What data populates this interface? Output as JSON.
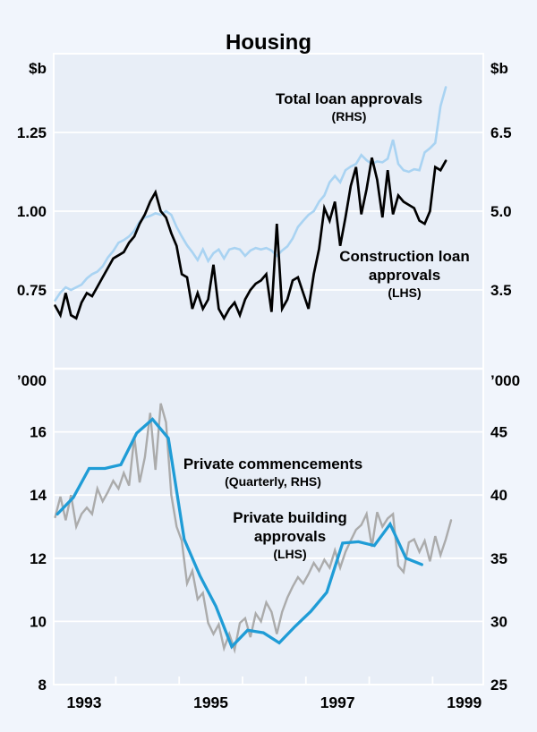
{
  "title": "Housing",
  "colors": {
    "background": "#f1f5fc",
    "plot_background": "#e8eef7",
    "gridline": "#ffffff",
    "text": "#000000",
    "total_loans": "#a9d3f2",
    "construction_loans": "#000000",
    "commencements": "#1f9cd6",
    "building_approvals": "#ababab"
  },
  "x_axis": {
    "lim": [
      1992.52,
      1999.3
    ],
    "year_labels": [
      "1993",
      "1995",
      "1997",
      "1999"
    ],
    "minor_tick_years": [
      1993.5,
      1994.5,
      1995.5,
      1996.5,
      1997.5,
      1998.5
    ]
  },
  "chart_data": [
    {
      "type": "line",
      "panel": "top",
      "left_axis": {
        "unit": "$b",
        "lim": [
          0.5,
          1.5
        ],
        "ticks": [
          0.75,
          1.0,
          1.25
        ],
        "tick_labels": [
          "0.75",
          "1.00",
          "1.25"
        ]
      },
      "right_axis": {
        "unit": "$b",
        "lim": [
          2.0,
          8.0
        ],
        "ticks": [
          3.5,
          5.0,
          6.5
        ],
        "tick_labels": [
          "3.5",
          "5.0",
          "6.5"
        ]
      },
      "series": [
        {
          "name": "Total loan approvals",
          "label_lines": [
            "Total loan approvals"
          ],
          "note": "(RHS)",
          "axis": "right",
          "color_key": "total_loans",
          "frequency": "monthly",
          "start": 1992.542,
          "step": 0.083333,
          "values": [
            3.3,
            3.45,
            3.55,
            3.5,
            3.55,
            3.6,
            3.72,
            3.8,
            3.85,
            3.95,
            4.12,
            4.24,
            4.4,
            4.45,
            4.52,
            4.63,
            4.8,
            4.88,
            4.91,
            4.96,
            4.93,
            5.0,
            4.93,
            4.7,
            4.52,
            4.35,
            4.22,
            4.07,
            4.27,
            4.05,
            4.2,
            4.27,
            4.1,
            4.27,
            4.3,
            4.27,
            4.15,
            4.25,
            4.3,
            4.27,
            4.3,
            4.25,
            4.15,
            4.25,
            4.33,
            4.48,
            4.7,
            4.82,
            4.93,
            5.0,
            5.18,
            5.3,
            5.55,
            5.67,
            5.55,
            5.78,
            5.85,
            5.9,
            6.07,
            5.97,
            5.9,
            5.95,
            5.93,
            6.0,
            6.36,
            5.9,
            5.78,
            5.75,
            5.8,
            5.78,
            6.12,
            6.2,
            6.3,
            7.0,
            7.36
          ]
        },
        {
          "name": "Construction loan approvals",
          "label_lines": [
            "Construction loan",
            "approvals"
          ],
          "note": "(LHS)",
          "axis": "left",
          "color_key": "construction_loans",
          "frequency": "monthly",
          "start": 1992.542,
          "step": 0.083333,
          "values": [
            0.7,
            0.67,
            0.74,
            0.67,
            0.66,
            0.71,
            0.74,
            0.73,
            0.76,
            0.79,
            0.82,
            0.85,
            0.86,
            0.87,
            0.9,
            0.92,
            0.96,
            0.99,
            1.03,
            1.06,
            1.0,
            0.98,
            0.93,
            0.89,
            0.8,
            0.79,
            0.69,
            0.74,
            0.69,
            0.72,
            0.83,
            0.69,
            0.66,
            0.69,
            0.71,
            0.67,
            0.72,
            0.75,
            0.77,
            0.78,
            0.8,
            0.68,
            0.96,
            0.69,
            0.72,
            0.78,
            0.79,
            0.74,
            0.69,
            0.8,
            0.88,
            1.01,
            0.97,
            1.03,
            0.89,
            0.98,
            1.08,
            1.14,
            0.99,
            1.07,
            1.17,
            1.1,
            0.98,
            1.13,
            0.99,
            1.05,
            1.03,
            1.02,
            1.01,
            0.97,
            0.96,
            1.0,
            1.14,
            1.13,
            1.16
          ]
        }
      ]
    },
    {
      "type": "line",
      "panel": "bottom",
      "left_axis": {
        "unit": "’000",
        "lim": [
          8,
          18
        ],
        "ticks": [
          8,
          10,
          12,
          14,
          16
        ],
        "tick_labels": [
          "8",
          "10",
          "12",
          "14",
          "16"
        ]
      },
      "right_axis": {
        "unit": "’000",
        "lim": [
          25,
          50
        ],
        "ticks": [
          25,
          30,
          35,
          40,
          45
        ],
        "tick_labels": [
          "25",
          "30",
          "35",
          "40",
          "45"
        ]
      },
      "series": [
        {
          "name": "Private building approvals",
          "label_lines": [
            "Private building",
            "approvals"
          ],
          "note": "(LHS)",
          "axis": "left",
          "color_key": "building_approvals",
          "frequency": "monthly",
          "start": 1992.542,
          "step": 0.083333,
          "values": [
            13.3,
            13.95,
            13.2,
            14.0,
            13.0,
            13.4,
            13.6,
            13.4,
            14.2,
            13.8,
            14.1,
            14.45,
            14.2,
            14.7,
            14.3,
            15.85,
            14.4,
            15.2,
            16.6,
            14.8,
            16.9,
            16.3,
            14.0,
            13.0,
            12.55,
            11.2,
            11.6,
            10.7,
            10.9,
            9.95,
            9.6,
            9.9,
            9.15,
            9.6,
            9.1,
            9.95,
            10.1,
            9.5,
            10.25,
            10.0,
            10.6,
            10.3,
            9.6,
            10.3,
            10.75,
            11.1,
            11.4,
            11.2,
            11.5,
            11.85,
            11.6,
            11.95,
            11.7,
            12.25,
            11.7,
            12.2,
            12.56,
            12.9,
            13.05,
            13.4,
            12.36,
            13.46,
            13.0,
            13.26,
            13.4,
            11.76,
            11.56,
            12.5,
            12.6,
            12.2,
            12.55,
            11.9,
            12.7,
            12.1,
            12.6,
            13.2
          ]
        },
        {
          "name": "Private commencements",
          "label_lines": [
            "Private commencements"
          ],
          "note": "(Quarterly, RHS)",
          "axis": "right",
          "color_key": "commencements",
          "frequency": "quarterly",
          "start": 1992.58,
          "step": 0.25,
          "values": [
            38.5,
            39.8,
            42.1,
            42.1,
            42.4,
            44.9,
            46.0,
            44.5,
            36.5,
            33.6,
            31.2,
            28.0,
            29.3,
            29.1,
            28.3,
            29.6,
            30.8,
            32.3,
            36.2,
            36.3,
            36.0,
            37.7,
            35.0,
            34.5
          ]
        }
      ]
    }
  ]
}
